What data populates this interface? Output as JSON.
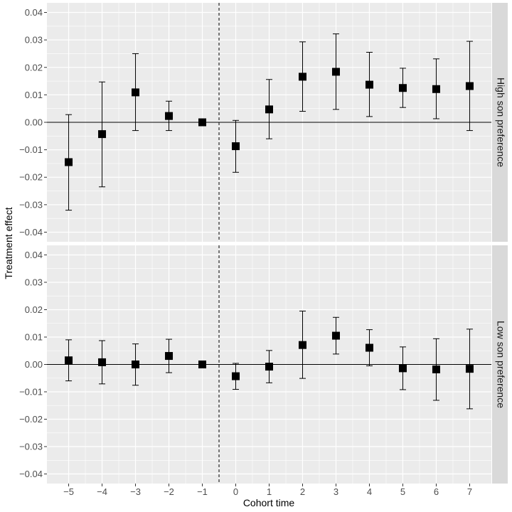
{
  "chart_data": {
    "type": "scatter",
    "xlabel": "Cohort time",
    "ylabel": "Treatment effect",
    "x_ticks": [
      -5,
      -4,
      -3,
      -2,
      -1,
      0,
      1,
      2,
      3,
      4,
      5,
      6,
      7
    ],
    "x_tick_labels": [
      "−5",
      "−4",
      "−3",
      "−2",
      "−1",
      "0",
      "1",
      "2",
      "3",
      "4",
      "5",
      "6",
      "7"
    ],
    "xlim": [
      -5.65,
      7.65
    ],
    "y_ticks": [
      -0.04,
      -0.03,
      -0.02,
      -0.01,
      0.0,
      0.01,
      0.02,
      0.03,
      0.04
    ],
    "y_tick_labels": [
      "−0.04",
      "−0.03",
      "−0.02",
      "−0.01",
      "0.00",
      "0.01",
      "0.02",
      "0.03",
      "0.04"
    ],
    "ylim": [
      -0.0435,
      0.0435
    ],
    "reference_vline_x": -0.5,
    "reference_hline_y": 0,
    "grid": true,
    "marker": "square",
    "colors": {
      "panel_bg": "#ebebeb",
      "grid": "#ffffff",
      "strip_bg": "#d9d9d9",
      "marker": "#000000"
    },
    "panels": [
      {
        "label": "High son preference",
        "points": [
          {
            "x": -5,
            "y": -0.0145,
            "lower": -0.032,
            "upper": 0.0028
          },
          {
            "x": -4,
            "y": -0.0043,
            "lower": -0.0235,
            "upper": 0.0147
          },
          {
            "x": -3,
            "y": 0.0109,
            "lower": -0.003,
            "upper": 0.025
          },
          {
            "x": -2,
            "y": 0.0023,
            "lower": -0.003,
            "upper": 0.0077
          },
          {
            "x": -1,
            "y": 0.0,
            "lower": 0.0,
            "upper": 0.0
          },
          {
            "x": 0,
            "y": -0.0087,
            "lower": -0.0182,
            "upper": 0.0007
          },
          {
            "x": 1,
            "y": 0.0047,
            "lower": -0.006,
            "upper": 0.0156
          },
          {
            "x": 2,
            "y": 0.0166,
            "lower": 0.004,
            "upper": 0.0293
          },
          {
            "x": 3,
            "y": 0.0184,
            "lower": 0.0047,
            "upper": 0.0322
          },
          {
            "x": 4,
            "y": 0.0137,
            "lower": 0.0021,
            "upper": 0.0255
          },
          {
            "x": 5,
            "y": 0.0125,
            "lower": 0.0054,
            "upper": 0.0197
          },
          {
            "x": 6,
            "y": 0.0121,
            "lower": 0.0013,
            "upper": 0.0231
          },
          {
            "x": 7,
            "y": 0.0132,
            "lower": -0.003,
            "upper": 0.0295
          }
        ]
      },
      {
        "label": "Low son preference",
        "points": [
          {
            "x": -5,
            "y": 0.0015,
            "lower": -0.006,
            "upper": 0.009
          },
          {
            "x": -4,
            "y": 0.0008,
            "lower": -0.0071,
            "upper": 0.0087
          },
          {
            "x": -3,
            "y": 0.0,
            "lower": -0.0076,
            "upper": 0.0075
          },
          {
            "x": -2,
            "y": 0.0031,
            "lower": -0.003,
            "upper": 0.0092
          },
          {
            "x": -1,
            "y": 0.0,
            "lower": 0.0,
            "upper": 0.0
          },
          {
            "x": 0,
            "y": -0.0043,
            "lower": -0.0091,
            "upper": 0.0004
          },
          {
            "x": 1,
            "y": -0.0008,
            "lower": -0.0067,
            "upper": 0.0051
          },
          {
            "x": 2,
            "y": 0.0071,
            "lower": -0.0051,
            "upper": 0.0195
          },
          {
            "x": 3,
            "y": 0.0105,
            "lower": 0.0038,
            "upper": 0.0172
          },
          {
            "x": 4,
            "y": 0.0061,
            "lower": -0.0005,
            "upper": 0.0127
          },
          {
            "x": 5,
            "y": -0.0014,
            "lower": -0.0092,
            "upper": 0.0064
          },
          {
            "x": 6,
            "y": -0.0018,
            "lower": -0.0131,
            "upper": 0.0094
          },
          {
            "x": 7,
            "y": -0.0016,
            "lower": -0.0162,
            "upper": 0.0129
          }
        ]
      }
    ]
  }
}
